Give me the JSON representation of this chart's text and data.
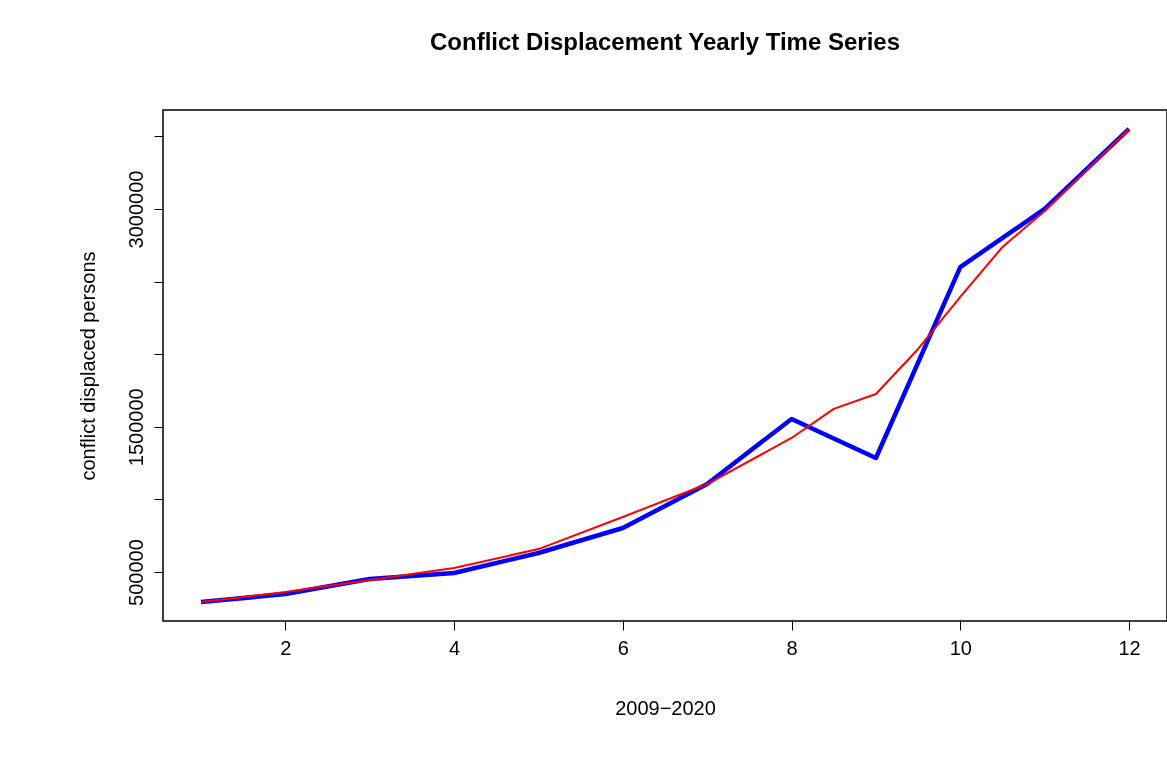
{
  "chart_data": {
    "type": "line",
    "title": "Conflict Displacement Yearly Time Series",
    "xlabel": "2009−2020",
    "ylabel": "conflict displaced persons",
    "series": [
      {
        "color": "#0000ff",
        "x": [
          1,
          2,
          3,
          4,
          5,
          6,
          7,
          8,
          9,
          10,
          11,
          12
        ],
        "values": [
          293000,
          348000,
          452000,
          493000,
          631000,
          803000,
          1106000,
          1554000,
          1285000,
          2600000,
          3000000,
          3551000
        ]
      },
      {
        "color": "#ff0000",
        "x": [
          1,
          2,
          3,
          4,
          5,
          6,
          7,
          8,
          8.5,
          9,
          9.5,
          10,
          10.5,
          11,
          12
        ],
        "values": [
          293000,
          362000,
          445000,
          528000,
          658000,
          879000,
          1106000,
          1423000,
          1623000,
          1726000,
          2036000,
          2394000,
          2738000,
          2986000,
          3551000
        ]
      }
    ],
    "xlim": [
      0.55,
      12.45
    ],
    "xticks": [
      2,
      4,
      6,
      8,
      10,
      12
    ],
    "ylim": [
      162700,
      3681300
    ],
    "yticks": [
      500000,
      {
        "value": 1000000,
        "label": null
      },
      1500000,
      {
        "value": 2000000,
        "label": null
      },
      {
        "value": 2500000,
        "label": null
      },
      3000000,
      {
        "value": 3500000,
        "label": null
      }
    ],
    "grid": false,
    "line_style": "solid",
    "marker": "none"
  }
}
